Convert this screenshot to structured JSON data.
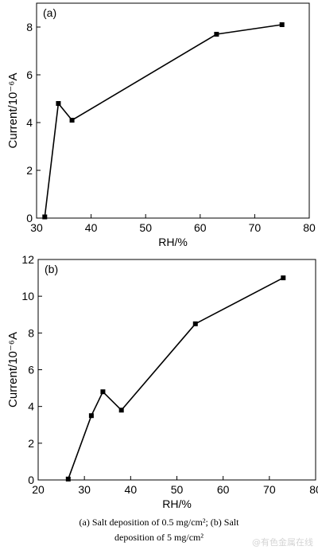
{
  "chart_data": [
    {
      "type": "line",
      "panel_label": "(a)",
      "xlabel": "RH/%",
      "ylabel": "Current/10⁻⁶A",
      "xlim": [
        30,
        80
      ],
      "ylim": [
        0,
        9
      ],
      "xticks": [
        30,
        40,
        50,
        60,
        70,
        80
      ],
      "yticks": [
        0,
        2,
        4,
        6,
        8
      ],
      "grid": false,
      "marker": "square",
      "series": [
        {
          "x": [
            31.5,
            34,
            36.5,
            63,
            75
          ],
          "y": [
            0.05,
            4.8,
            4.1,
            7.7,
            8.1
          ]
        }
      ]
    },
    {
      "type": "line",
      "panel_label": "(b)",
      "xlabel": "RH/%",
      "ylabel": "Current/10⁻⁶A",
      "xlim": [
        20,
        80
      ],
      "ylim": [
        0,
        12
      ],
      "xticks": [
        20,
        30,
        40,
        50,
        60,
        70,
        80
      ],
      "yticks": [
        0,
        2,
        4,
        6,
        8,
        10,
        12
      ],
      "grid": false,
      "marker": "square",
      "series": [
        {
          "x": [
            26.5,
            31.5,
            34,
            38,
            54,
            73
          ],
          "y": [
            0.05,
            3.5,
            4.8,
            3.8,
            8.5,
            11
          ]
        }
      ]
    }
  ],
  "caption": {
    "line1": "(a) Salt deposition of 0.5 mg/cm²; (b) Salt",
    "line2": "deposition of 5 mg/cm²"
  },
  "watermark": "@有色金属在线"
}
